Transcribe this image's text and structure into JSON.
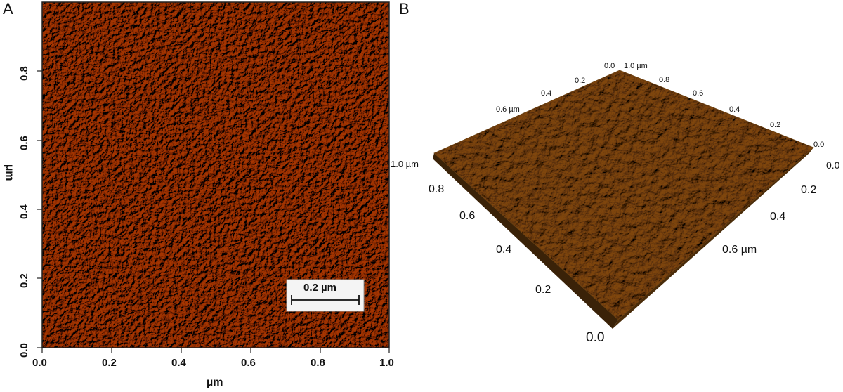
{
  "panel_a": {
    "letter": "A",
    "x_ticks": [
      "0.0",
      "0.2",
      "0.4",
      "0.6",
      "0.8",
      "1.0"
    ],
    "y_ticks": [
      "0.0",
      "0.2",
      "0.4",
      "0.6",
      "0.8"
    ],
    "x_title": "µm",
    "y_title": "µm",
    "scalebar_label": "0.2 µm",
    "colors": {
      "base": "#a8440f",
      "highlight": "#f2c07a",
      "shadow": "#3a1203"
    }
  },
  "panel_b": {
    "letter": "B",
    "top_back_ticks": [
      "0.0",
      "0.2",
      "0.4",
      "0.6 µm"
    ],
    "top_right_ticks": [
      "1.0 µm",
      "0.8",
      "0.6",
      "0.4",
      "0.2",
      "0.0"
    ],
    "left_ticks": [
      "1.0 µm",
      "0.8",
      "0.6",
      "0.4",
      "0.2",
      "0.0"
    ],
    "right_ticks": [
      "0.0",
      "0.2",
      "0.4",
      "0.6 µm"
    ],
    "colors": {
      "base": "#8a5a22",
      "highlight": "#d8b48a",
      "shadow": "#4a2c0a"
    }
  }
}
